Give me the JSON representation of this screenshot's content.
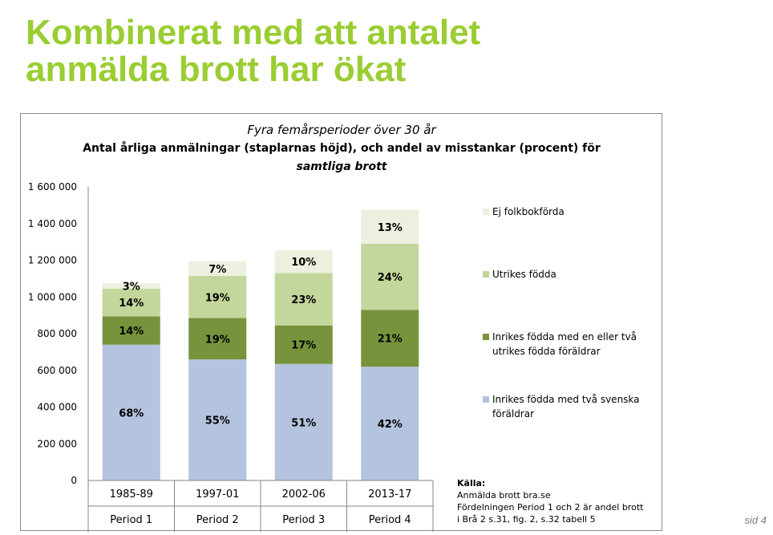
{
  "slide": {
    "title_line1": "Kombinerat med att antalet",
    "title_line2": "anmälda brott har ökat",
    "page_label": "sid 4"
  },
  "chart_data": {
    "type": "bar",
    "stacked": true,
    "subtitle": "Fyra femårsperioder över 30 år",
    "title_line1": "Antal årliga anmälningar (staplarnas höjd), och andel av misstankar (procent) för",
    "title_line2": "samtliga brott",
    "categories": [
      "1985-89",
      "1997-01",
      "2002-06",
      "2013-17"
    ],
    "period_labels": [
      "Period 1",
      "Period 2",
      "Period 3",
      "Period 4"
    ],
    "ylim": [
      0,
      1600000
    ],
    "yticks": [
      0,
      200000,
      400000,
      600000,
      800000,
      1000000,
      1200000,
      1400000,
      1600000
    ],
    "ytick_labels": [
      "0",
      "200 000",
      "400 000",
      "600 000",
      "800 000",
      "1 000 000",
      "1 200 000",
      "1 400 000",
      "1 600 000"
    ],
    "grid": false,
    "legend_position": "right",
    "series": [
      {
        "name": "Inrikes födda med två svenska föräldrar",
        "legend_lines": [
          "Inrikes födda med två svenska",
          "föräldrar"
        ],
        "color": "#b4c3de",
        "values": [
          740000,
          660000,
          635000,
          620000
        ],
        "labels": [
          "68%",
          "55%",
          "51%",
          "42%"
        ]
      },
      {
        "name": "Inrikes födda med en eller två utrikes födda föräldrar",
        "legend_lines": [
          "Inrikes födda med en eller två",
          "utrikes födda föräldrar"
        ],
        "color": "#77933c",
        "values": [
          155000,
          225000,
          210000,
          310000
        ],
        "labels": [
          "14%",
          "19%",
          "17%",
          "21%"
        ]
      },
      {
        "name": "Utrikes födda",
        "legend_lines": [
          "Utrikes födda"
        ],
        "color": "#c3d69b",
        "values": [
          150000,
          230000,
          285000,
          360000
        ],
        "labels": [
          "14%",
          "19%",
          "23%",
          "24%"
        ]
      },
      {
        "name": "Ej folkbokförda",
        "legend_lines": [
          "Ej folkbokförda"
        ],
        "color": "#ebf1de",
        "values": [
          30000,
          80000,
          125000,
          185000
        ],
        "labels": [
          "3%",
          "7%",
          "10%",
          "13%"
        ]
      }
    ],
    "source_lines": [
      "Källa:",
      "Anmälda brott bra.se",
      "Fördelningen Period 1 och 2 är andel brott",
      "i Brå 2 s.31, fig. 2, s.32 tabell 5"
    ]
  }
}
